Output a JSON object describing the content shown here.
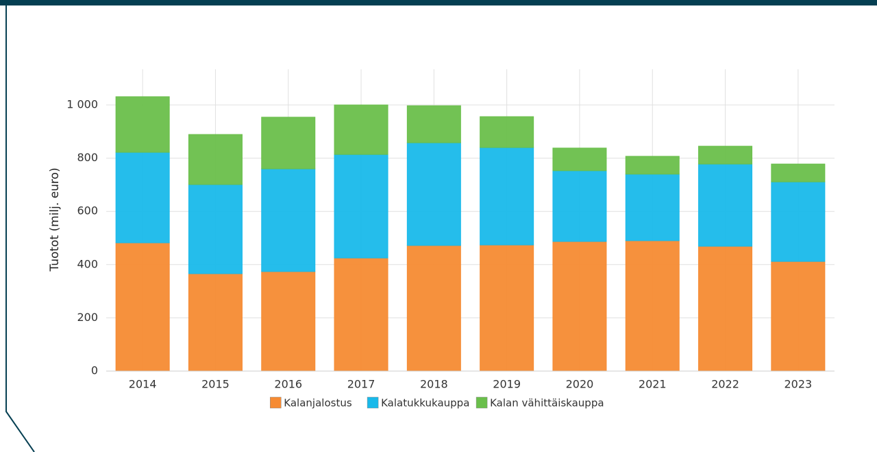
{
  "chart_data": {
    "type": "stacked-bar",
    "y_axis_label": "Tuotot (milj. euro)",
    "categories": [
      "2014",
      "2015",
      "2016",
      "2017",
      "2018",
      "2019",
      "2020",
      "2021",
      "2022",
      "2023"
    ],
    "series": [
      {
        "name": "Kalanjalostus",
        "color": "#f68b33",
        "values": [
          482,
          366,
          374,
          425,
          472,
          474,
          487,
          490,
          469,
          412
        ]
      },
      {
        "name": "Kalatukkukauppa",
        "color": "#19b9ea",
        "values": [
          340,
          335,
          386,
          389,
          386,
          366,
          266,
          250,
          309,
          299
        ]
      },
      {
        "name": "Kalan vähittäiskauppa",
        "color": "#6abf4b",
        "values": [
          209,
          188,
          194,
          186,
          139,
          116,
          85,
          67,
          67,
          67
        ]
      }
    ],
    "ylim": [
      0,
      1134
    ],
    "yticks": [
      0,
      200,
      400,
      600,
      800,
      {
        "value": 1000,
        "label": "1 000"
      }
    ],
    "grid": true
  }
}
